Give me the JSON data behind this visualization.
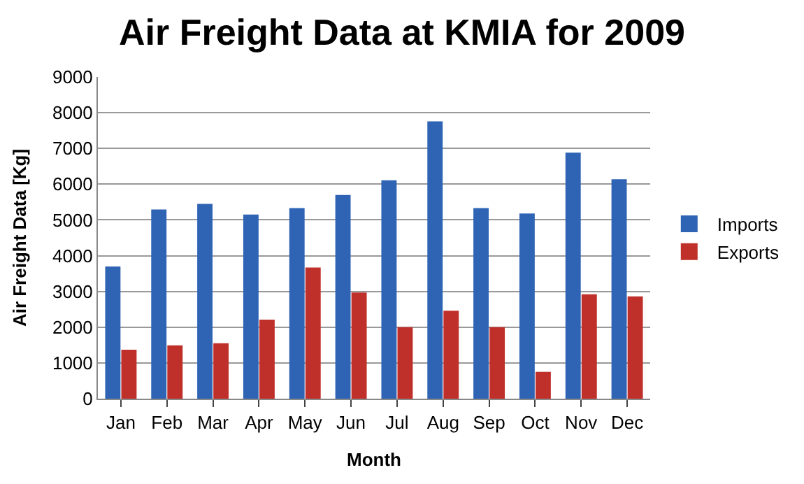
{
  "chart_data": {
    "type": "bar",
    "title": "Air Freight Data at KMIA for 2009",
    "xlabel": "Month",
    "ylabel": "Air Freight Data [Kg]",
    "categories": [
      "Jan",
      "Feb",
      "Mar",
      "Apr",
      "May",
      "Jun",
      "Jul",
      "Aug",
      "Sep",
      "Oct",
      "Nov",
      "Dec"
    ],
    "series": [
      {
        "name": "Imports",
        "color": "#2f64b5",
        "values": [
          3700,
          5290,
          5450,
          5150,
          5330,
          5700,
          6110,
          7760,
          5330,
          5180,
          6880,
          6140
        ]
      },
      {
        "name": "Exports",
        "color": "#c0302b",
        "values": [
          1370,
          1490,
          1550,
          2210,
          3670,
          2970,
          2000,
          2460,
          2000,
          750,
          2920,
          2860
        ]
      }
    ],
    "ylim": [
      0,
      9000
    ],
    "yticks": [
      0,
      1000,
      2000,
      3000,
      4000,
      5000,
      6000,
      7000,
      8000,
      9000
    ],
    "grid": "y",
    "legend": "right"
  }
}
